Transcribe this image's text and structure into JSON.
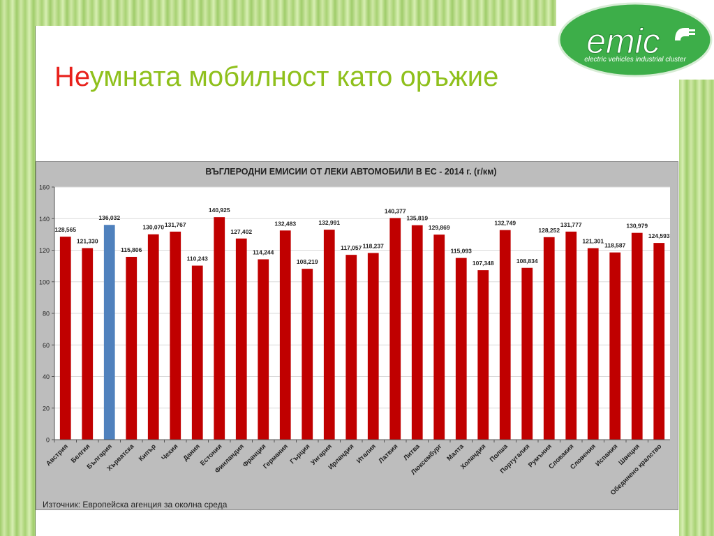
{
  "slide": {
    "title_highlight": "Не",
    "title_rest": "умната мобилност като оръжие"
  },
  "logo": {
    "brand": "emic",
    "tagline": "electric vehicles industrial cluster",
    "icon": "plug-icon",
    "color": "#3dae49"
  },
  "chart_data": {
    "type": "bar",
    "title": "ВЪГЛЕРОДНИ ЕМИСИИ ОТ ЛЕКИ АВТОМОБИЛИ В ЕС - 2014 г. (г/км)",
    "source": "Източник: Европейска агенция за околна среда",
    "categories": [
      "Австрия",
      "Белгия",
      "България",
      "Хърватска",
      "Кипър",
      "Чехия",
      "Дания",
      "Естония",
      "Финландия",
      "Франция",
      "Германия",
      "Гърция",
      "Унгария",
      "Ирландия",
      "Италия",
      "Латвия",
      "Литва",
      "Люксембург",
      "Малта",
      "Холандия",
      "Полша",
      "Португалия",
      "Румъния",
      "Словакия",
      "Словения",
      "Испания",
      "Швеция",
      "Обединено кралство"
    ],
    "values": [
      128.565,
      121.33,
      136.032,
      115.806,
      130.07,
      131.767,
      110.243,
      140.925,
      127.402,
      114.244,
      132.483,
      108.219,
      132.991,
      117.057,
      118.237,
      140.377,
      135.819,
      129.869,
      115.093,
      107.348,
      132.749,
      108.834,
      128.252,
      131.777,
      121.301,
      118.587,
      130.979,
      124.593
    ],
    "labels": [
      "128,565",
      "121,330",
      "136,032",
      "115,806",
      "130,070",
      "131,767",
      "110,243",
      "140,925",
      "127,402",
      "114,244",
      "132,483",
      "108,219",
      "132,991",
      "117,057",
      "118,237",
      "140,377",
      "135,819",
      "129,869",
      "115,093",
      "107,348",
      "132,749",
      "108,834",
      "128,252",
      "131,777",
      "121,301",
      "118,587",
      "130,979",
      "124,593"
    ],
    "highlight": "България",
    "colors": {
      "bar": "#c00000",
      "highlight": "#4f81bd",
      "plot_bg": "#ffffff",
      "panel_bg": "#bdbdbd",
      "grid": "#d9d9d9"
    },
    "ylim": [
      0,
      160
    ],
    "yticks": [
      0,
      20,
      40,
      60,
      80,
      100,
      120,
      140,
      160
    ],
    "grid": true,
    "legend": "none"
  }
}
